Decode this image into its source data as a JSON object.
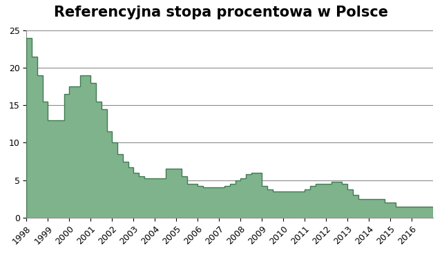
{
  "chart_data": {
    "type": "area",
    "title": "Referencyjna stopa procentowa w Polsce",
    "categories": [
      "1998",
      null,
      null,
      null,
      "1999",
      null,
      null,
      null,
      "2000",
      null,
      null,
      null,
      "2001",
      null,
      null,
      null,
      "2002",
      null,
      null,
      null,
      "2003",
      null,
      null,
      null,
      "2004",
      null,
      null,
      null,
      "2005",
      null,
      null,
      null,
      "2006",
      null,
      null,
      null,
      "2007",
      null,
      null,
      null,
      "2008",
      null,
      null,
      null,
      "2009",
      null,
      null,
      null,
      "2010",
      null,
      null,
      null,
      "2011",
      null,
      null,
      null,
      "2012",
      null,
      null,
      null,
      "2013",
      null,
      null,
      null,
      "2014",
      null,
      null,
      null,
      "2015",
      null,
      null,
      null,
      "2016",
      null,
      null,
      null
    ],
    "values": [
      24,
      21.5,
      19,
      15.5,
      13,
      13,
      13,
      16.5,
      17.5,
      17.5,
      19,
      19,
      18,
      15.5,
      14.5,
      11.5,
      10,
      8.5,
      7.5,
      6.75,
      6,
      5.5,
      5.25,
      5.25,
      5.25,
      5.25,
      6.5,
      6.5,
      6.5,
      5.5,
      4.5,
      4.5,
      4.25,
      4,
      4,
      4,
      4,
      4.25,
      4.5,
      5,
      5.25,
      5.75,
      6,
      6,
      4.25,
      3.75,
      3.5,
      3.5,
      3.5,
      3.5,
      3.5,
      3.5,
      3.75,
      4.25,
      4.5,
      4.5,
      4.5,
      4.75,
      4.75,
      4.5,
      3.75,
      3,
      2.5,
      2.5,
      2.5,
      2.5,
      2.5,
      2,
      2,
      1.5,
      1.5,
      1.5,
      1.5,
      1.5,
      1.5,
      1.5
    ],
    "color": "#7fb38c",
    "ylim": [
      0,
      25
    ],
    "yticks": [
      0,
      5,
      10,
      15,
      20,
      25
    ],
    "grid": true
  }
}
